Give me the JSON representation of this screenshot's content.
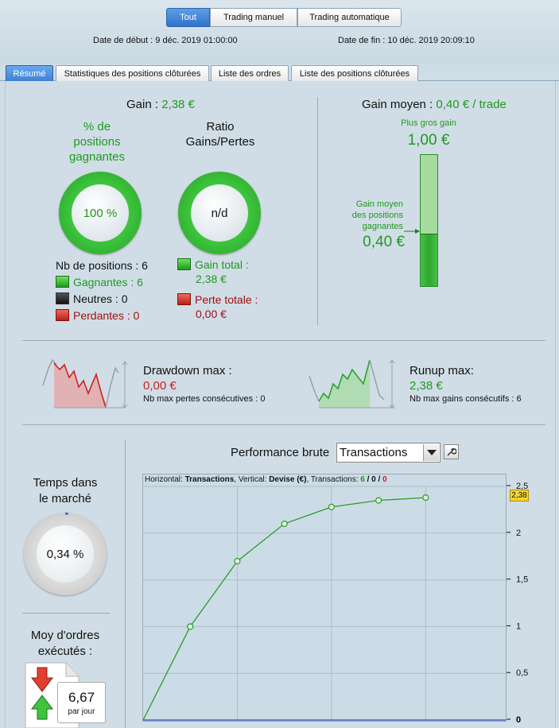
{
  "toolbar": {
    "tabs": [
      "Tout",
      "Trading manuel",
      "Trading automatique"
    ],
    "start_date": "Date de début : 9 déc. 2019 01:00:00",
    "end_date": "Date de fin : 10 déc. 2019 20:09:10"
  },
  "tabs": [
    "Résumé",
    "Statistiques des positions clôturées",
    "Liste des ordres",
    "Liste des positions clôturées"
  ],
  "summary": {
    "gain_label": "Gain : ",
    "gain_value": "2,38 €",
    "pct_win_label_1": "% de",
    "pct_win_label_2": "positions",
    "pct_win_label_3": "gagnantes",
    "pct_win_value": "100 %",
    "ratio_label_1": "Ratio",
    "ratio_label_2": "Gains/Pertes",
    "ratio_value": "n/d",
    "positions_count": "Nb de positions : 6",
    "winning": "Gagnantes : 6",
    "neutral": "Neutres : 0",
    "losing": "Perdantes : 0",
    "total_gain_label": "Gain total :",
    "total_gain_value": "2,38 €",
    "total_loss_label": "Perte totale :",
    "total_loss_value": "0,00 €",
    "avg_gain_label": "Gain moyen : ",
    "avg_gain_value": "0,40 € / trade",
    "biggest_gain_label": "Plus gros gain",
    "biggest_gain_value": "1,00 €",
    "avg_winning_label_1": "Gain moyen",
    "avg_winning_label_2": "des positions",
    "avg_winning_label_3": "gagnantes",
    "avg_winning_value": "0,40 €",
    "avg_fill_fraction": 0.4
  },
  "drawdown": {
    "label": "Drawdown max :",
    "value": "0,00 €",
    "sub": "Nb max pertes consécutives : 0"
  },
  "runup": {
    "label": "Runup max:",
    "value": "2,38 €",
    "sub": "Nb max gains consécutifs : 6"
  },
  "market": {
    "label_1": "Temps dans",
    "label_2": "le marché",
    "value": "0,34 %",
    "fraction": 0.0034
  },
  "orders": {
    "label_1": "Moy d'ordres",
    "label_2": "exécutés :",
    "value": "6,67",
    "unit": "par jour"
  },
  "performance": {
    "title": "Performance brute",
    "select_value": "Transactions",
    "legend_h_label": "Horizontal: ",
    "legend_h_value": "Transactions",
    "legend_v_label": ", Vertical: ",
    "legend_v_value": "Devise (€)",
    "legend_t_label": ", Transactions: ",
    "legend_t_win": "6",
    "legend_t_sep1": " / ",
    "legend_t_neutral": "0",
    "legend_t_sep2": " / ",
    "legend_t_loss": "0",
    "current_value_label": "2,38"
  },
  "chart_data": {
    "type": "line",
    "x": [
      0,
      1,
      2,
      3,
      4,
      5,
      6
    ],
    "y": [
      0,
      1.0,
      1.7,
      2.1,
      2.28,
      2.35,
      2.38
    ],
    "ylim": [
      0,
      2.5
    ],
    "xlim": [
      0,
      7.7
    ],
    "y_ticks": [
      0,
      0.5,
      1,
      1.5,
      2,
      2.5
    ],
    "y_tick_labels": [
      "0",
      "0,5",
      "1",
      "1,5",
      "2",
      "2,5"
    ],
    "grid": true,
    "color": "#2e9a2e"
  },
  "colors": {
    "accent": "#2f73c9",
    "green": "#1f9a1f",
    "red": "#c82020"
  }
}
